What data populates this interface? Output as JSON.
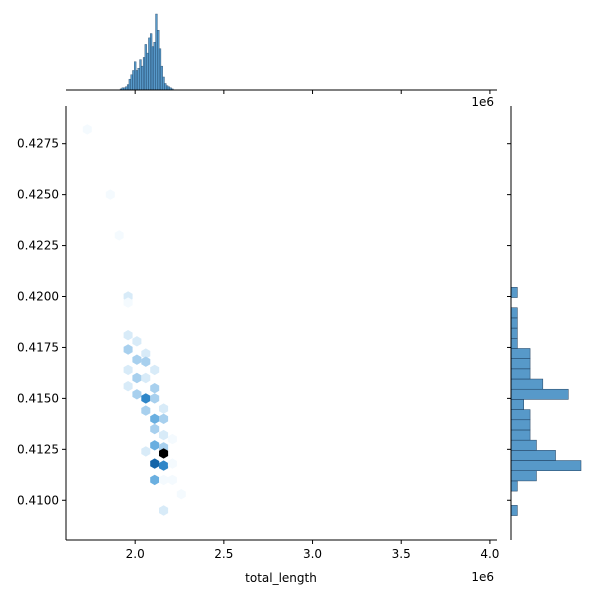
{
  "chart_data": {
    "type": "heatmap",
    "subtype": "joint hexbin with marginal histograms",
    "xlabel": "total_length",
    "ylabel": "",
    "x_offset_label": "1e6",
    "top_offset_label": "1e6",
    "xlim": [
      1.61,
      4.04
    ],
    "ylim": [
      0.40805,
      0.42935
    ],
    "x_tick_values": [
      2.0,
      2.5,
      3.0,
      3.5,
      4.0
    ],
    "x_tick_labels": [
      "2.0",
      "2.5",
      "3.0",
      "3.5",
      "4.0"
    ],
    "y_tick_values": [
      0.41,
      0.4125,
      0.415,
      0.4175,
      0.42,
      0.4225,
      0.425,
      0.4275
    ],
    "y_tick_labels": [
      "0.4100",
      "0.4125",
      "0.4150",
      "0.4175",
      "0.4200",
      "0.4225",
      "0.4250",
      "0.4275"
    ],
    "colormap": [
      "#f4fafe",
      "#d8ebf8",
      "#a8d0ee",
      "#6aafe0",
      "#2f86c8",
      "#1565a8",
      "#0a2f52",
      "#000000"
    ],
    "bar_color": "#3a87c0",
    "hexbins": [
      {
        "x": 1.73,
        "y": 0.4282,
        "count": 1
      },
      {
        "x": 1.86,
        "y": 0.425,
        "count": 1
      },
      {
        "x": 1.91,
        "y": 0.423,
        "count": 1
      },
      {
        "x": 1.96,
        "y": 0.42,
        "count": 2
      },
      {
        "x": 1.96,
        "y": 0.4197,
        "count": 1
      },
      {
        "x": 1.96,
        "y": 0.4181,
        "count": 2
      },
      {
        "x": 2.01,
        "y": 0.4178,
        "count": 2
      },
      {
        "x": 1.96,
        "y": 0.4174,
        "count": 3
      },
      {
        "x": 2.01,
        "y": 0.4169,
        "count": 3
      },
      {
        "x": 2.06,
        "y": 0.4172,
        "count": 2
      },
      {
        "x": 2.06,
        "y": 0.4168,
        "count": 3
      },
      {
        "x": 1.96,
        "y": 0.4164,
        "count": 2
      },
      {
        "x": 2.01,
        "y": 0.416,
        "count": 3
      },
      {
        "x": 2.06,
        "y": 0.416,
        "count": 2
      },
      {
        "x": 2.11,
        "y": 0.4164,
        "count": 2
      },
      {
        "x": 2.11,
        "y": 0.4155,
        "count": 3
      },
      {
        "x": 1.96,
        "y": 0.4156,
        "count": 2
      },
      {
        "x": 2.01,
        "y": 0.4152,
        "count": 3
      },
      {
        "x": 2.06,
        "y": 0.415,
        "count": 5
      },
      {
        "x": 2.11,
        "y": 0.415,
        "count": 3
      },
      {
        "x": 2.06,
        "y": 0.4144,
        "count": 3
      },
      {
        "x": 2.11,
        "y": 0.414,
        "count": 4
      },
      {
        "x": 2.16,
        "y": 0.4145,
        "count": 2
      },
      {
        "x": 2.16,
        "y": 0.414,
        "count": 3
      },
      {
        "x": 2.11,
        "y": 0.4135,
        "count": 3
      },
      {
        "x": 2.16,
        "y": 0.4132,
        "count": 2
      },
      {
        "x": 2.21,
        "y": 0.413,
        "count": 1
      },
      {
        "x": 2.11,
        "y": 0.4127,
        "count": 4
      },
      {
        "x": 2.16,
        "y": 0.4126,
        "count": 3
      },
      {
        "x": 2.06,
        "y": 0.4124,
        "count": 2
      },
      {
        "x": 2.11,
        "y": 0.4118,
        "count": 6
      },
      {
        "x": 2.16,
        "y": 0.4123,
        "count": 8
      },
      {
        "x": 2.16,
        "y": 0.4117,
        "count": 5
      },
      {
        "x": 2.21,
        "y": 0.4118,
        "count": 1
      },
      {
        "x": 2.11,
        "y": 0.411,
        "count": 4
      },
      {
        "x": 2.16,
        "y": 0.411,
        "count": 1
      },
      {
        "x": 2.21,
        "y": 0.411,
        "count": 1
      },
      {
        "x": 2.16,
        "y": 0.4095,
        "count": 2
      },
      {
        "x": 2.26,
        "y": 0.4103,
        "count": 1
      }
    ],
    "x_histogram": {
      "bins_1e6": [
        1.92,
        1.93,
        1.94,
        1.95,
        1.96,
        1.97,
        1.98,
        1.99,
        2.0,
        2.01,
        2.02,
        2.03,
        2.04,
        2.05,
        2.06,
        2.07,
        2.08,
        2.09,
        2.1,
        2.11,
        2.12,
        2.13,
        2.14,
        2.15,
        2.16,
        2.17,
        2.18,
        2.19,
        2.2,
        2.21
      ],
      "counts": [
        1,
        2,
        2,
        3,
        5,
        10,
        14,
        18,
        26,
        18,
        20,
        28,
        22,
        30,
        42,
        34,
        48,
        52,
        40,
        44,
        70,
        55,
        38,
        22,
        12,
        6,
        4,
        3,
        2,
        1
      ]
    },
    "y_histogram": {
      "bin_centers": [
        0.4095,
        0.4102,
        0.4107,
        0.4112,
        0.4117,
        0.4122,
        0.4127,
        0.4132,
        0.4137,
        0.4142,
        0.4147,
        0.4152,
        0.4157,
        0.4162,
        0.4167,
        0.4172,
        0.4177,
        0.4182,
        0.4187,
        0.4192,
        0.4197,
        0.4202
      ],
      "counts": [
        1,
        0,
        1,
        4,
        11,
        7,
        4,
        3,
        3,
        3,
        2,
        9,
        5,
        3,
        3,
        3,
        1,
        1,
        1,
        1,
        0,
        1
      ]
    }
  }
}
